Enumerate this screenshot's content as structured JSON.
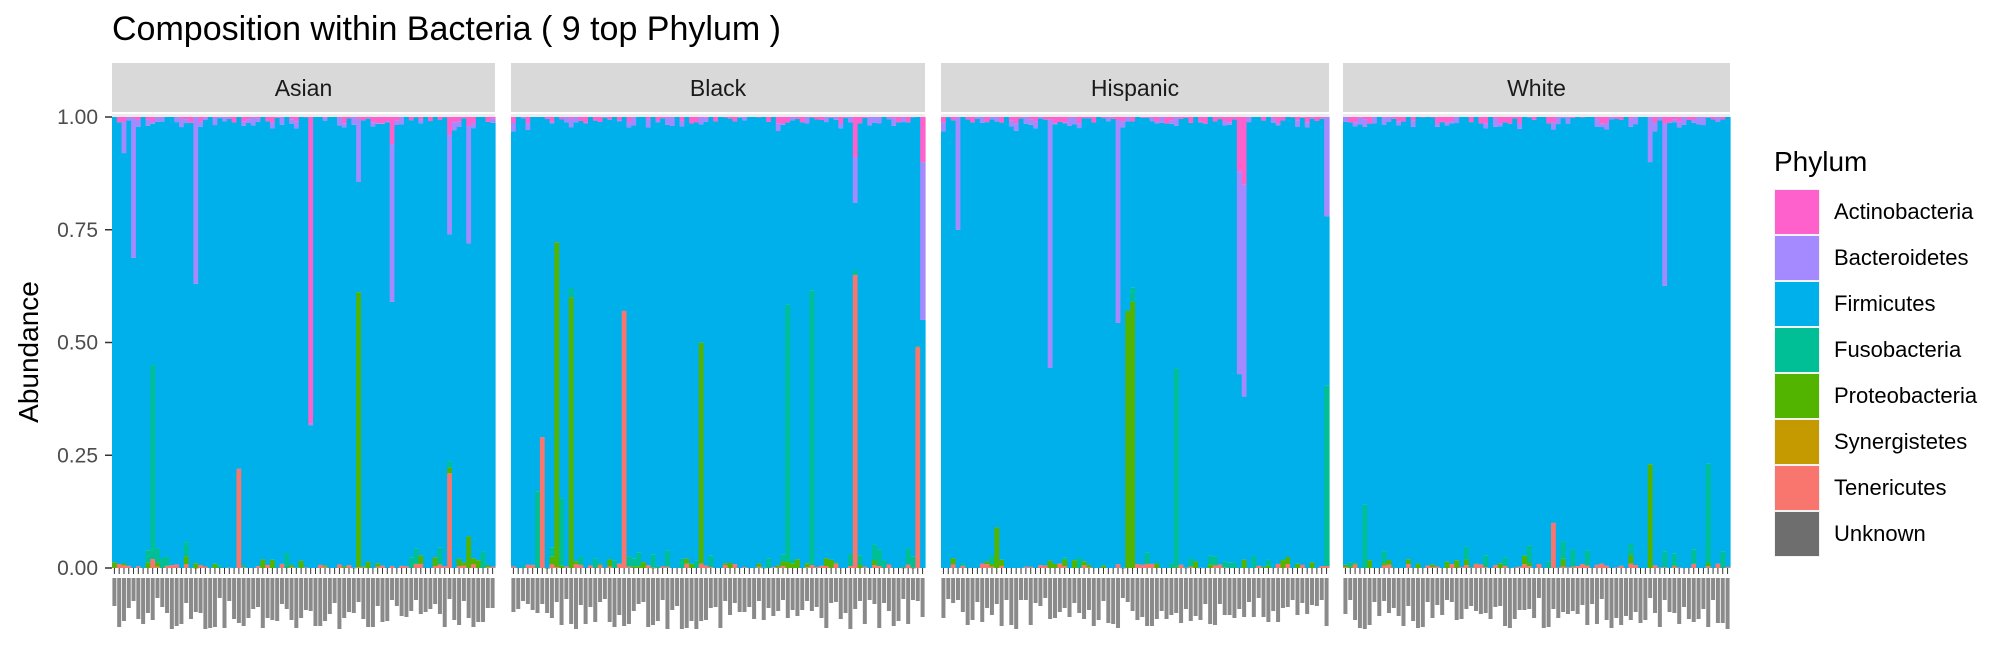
{
  "colors": {
    "Actinobacteria": "#FF61CC",
    "Bacteroidetes": "#A58AFF",
    "Firmicutes": "#00B0EA",
    "Fusobacteria": "#00BF96",
    "Proteobacteria": "#53B400",
    "Synergistetes": "#C49A00",
    "Tenericutes": "#F8766D",
    "Unknown": "#6E6E6E"
  },
  "chart_data": {
    "type": "bar",
    "stacked": true,
    "faceted_by": "ethnicity",
    "title": "Composition within Bacteria ( 9 top Phylum )",
    "xlabel": "",
    "ylabel": "Abundance",
    "ylim": [
      0,
      1
    ],
    "yticks": [
      "0.00",
      "0.25",
      "0.50",
      "0.75",
      "1.00"
    ],
    "ytick_values": [
      0,
      0.25,
      0.5,
      0.75,
      1
    ],
    "grid": true,
    "legend_position": "right",
    "legend_title": "Phylum",
    "stack_order_bottom_to_top": [
      "Tenericutes",
      "Proteobacteria",
      "Fusobacteria",
      "Firmicutes",
      "Bacteroidetes",
      "Actinobacteria"
    ],
    "series": [
      {
        "name": "Actinobacteria"
      },
      {
        "name": "Bacteroidetes"
      },
      {
        "name": "Firmicutes"
      },
      {
        "name": "Fusobacteria"
      },
      {
        "name": "Proteobacteria"
      },
      {
        "name": "Synergistetes"
      },
      {
        "name": "Tenericutes"
      },
      {
        "name": "Unknown"
      }
    ],
    "facets": [
      {
        "label": "Asian",
        "sample_count": 80,
        "notable_bars": [
          {
            "sample": 2,
            "Actinobacteria": 0.01,
            "Bacteroidetes": 0.07
          },
          {
            "sample": 4,
            "Bacteroidetes": 0.31
          },
          {
            "sample": 8,
            "Fusobacteria": 0.43,
            "Tenericutes": 0.02
          },
          {
            "sample": 17,
            "Bacteroidetes": 0.37
          },
          {
            "sample": 26,
            "Tenericutes": 0.22
          },
          {
            "sample": 41,
            "Actinobacteria": 0.68
          },
          {
            "sample": 51,
            "Bacteroidetes": 0.14
          },
          {
            "sample": 51,
            "Proteobacteria": 0.61
          },
          {
            "sample": 58,
            "Actinobacteria": 0.06,
            "Bacteroidetes": 0.35
          },
          {
            "sample": 70,
            "Actinobacteria": 0.04,
            "Bacteroidetes": 0.22,
            "Tenericutes": 0.21
          },
          {
            "sample": 74,
            "Actinobacteria": 0.02,
            "Bacteroidetes": 0.26,
            "Proteobacteria": 0.07
          }
        ]
      },
      {
        "label": "Black",
        "sample_count": 86,
        "notable_bars": [
          {
            "sample": 5,
            "Fusobacteria": 0.17
          },
          {
            "sample": 6,
            "Tenericutes": 0.29
          },
          {
            "sample": 9,
            "Proteobacteria": 0.72
          },
          {
            "sample": 10,
            "Fusobacteria": 0.15
          },
          {
            "sample": 12,
            "Proteobacteria": 0.6
          },
          {
            "sample": 23,
            "Tenericutes": 0.57
          },
          {
            "sample": 39,
            "Proteobacteria": 0.49
          },
          {
            "sample": 57,
            "Fusobacteria": 0.57
          },
          {
            "sample": 62,
            "Fusobacteria": 0.61
          },
          {
            "sample": 71,
            "Tenericutes": 0.65,
            "Actinobacteria": 0.09,
            "Bacteroidetes": 0.1
          },
          {
            "sample": 84,
            "Tenericutes": 0.49
          },
          {
            "sample": 85,
            "Actinobacteria": 0.1,
            "Bacteroidetes": 0.35
          }
        ]
      },
      {
        "label": "Hispanic",
        "sample_count": 80,
        "notable_bars": [
          {
            "sample": 3,
            "Bacteroidetes": 0.25
          },
          {
            "sample": 11,
            "Proteobacteria": 0.09
          },
          {
            "sample": 22,
            "Bacteroidetes": 0.55
          },
          {
            "sample": 36,
            "Bacteroidetes": 0.45
          },
          {
            "sample": 38,
            "Proteobacteria": 0.57
          },
          {
            "sample": 39,
            "Proteobacteria": 0.59
          },
          {
            "sample": 48,
            "Fusobacteria": 0.44
          },
          {
            "sample": 61,
            "Actinobacteria": 0.12,
            "Bacteroidetes": 0.45
          },
          {
            "sample": 62,
            "Actinobacteria": 0.15,
            "Bacteroidetes": 0.47
          },
          {
            "sample": 79,
            "Fusobacteria": 0.4,
            "Bacteroidetes": 0.22
          }
        ]
      },
      {
        "label": "White",
        "sample_count": 80,
        "notable_bars": [
          {
            "sample": 4,
            "Fusobacteria": 0.14
          },
          {
            "sample": 43,
            "Tenericutes": 0.1
          },
          {
            "sample": 63,
            "Bacteroidetes": 0.1
          },
          {
            "sample": 63,
            "Proteobacteria": 0.23
          },
          {
            "sample": 66,
            "Bacteroidetes": 0.36
          },
          {
            "sample": 75,
            "Fusobacteria": 0.22
          }
        ]
      }
    ]
  }
}
